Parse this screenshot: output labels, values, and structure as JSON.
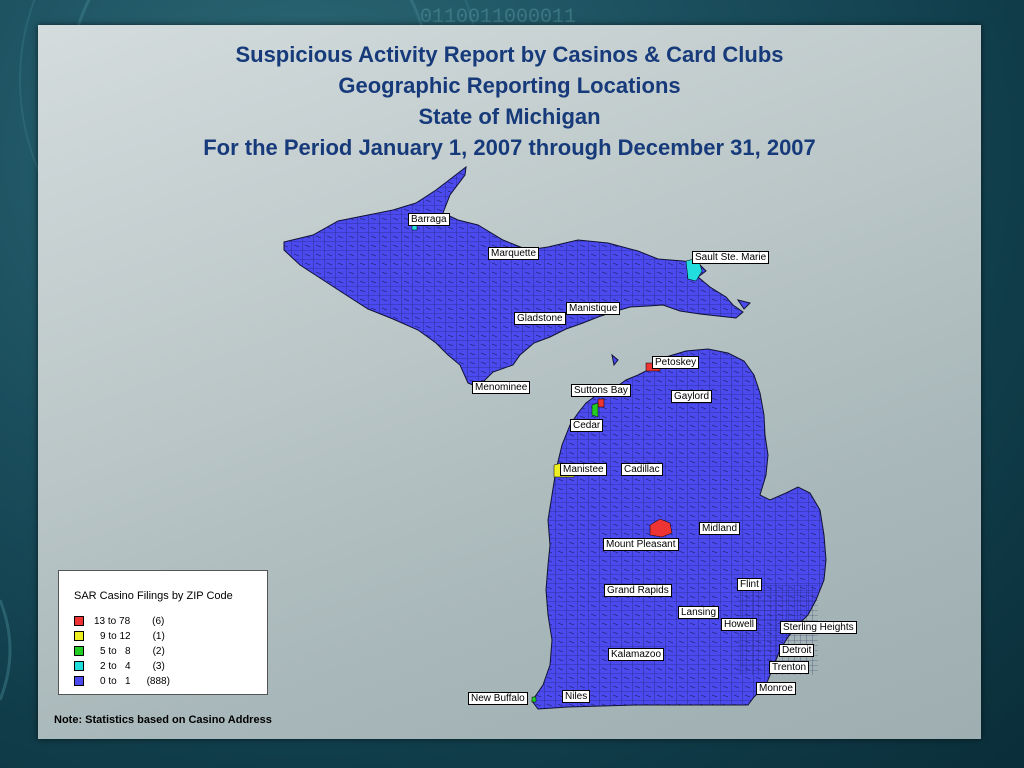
{
  "titles": {
    "line1": "Suspicious Activity Report by Casinos & Card Clubs",
    "line2": "Geographic Reporting Locations",
    "line3": "State of Michigan",
    "line4": "For the Period January 1, 2007 through December 31, 2007"
  },
  "colors": {
    "map_fill": "#4a4aee",
    "title": "#163a7a",
    "high": "#ee3333",
    "upper_mid": "#eeee22",
    "mid": "#22cc22",
    "low": "#22dddd",
    "base": "#4a4aee"
  },
  "cities": {
    "barraga": "Barraga",
    "marquette": "Marquette",
    "sault": "Sault Ste. Marie",
    "manistique": "Manistique",
    "gladstone": "Gladstone",
    "petoskey": "Petoskey",
    "menominee": "Menominee",
    "suttons_bay": "Suttons Bay",
    "gaylord": "Gaylord",
    "cedar": "Cedar",
    "manistee": "Manistee",
    "cadillac": "Cadillac",
    "midland": "Midland",
    "mount_pleasant": "Mount Pleasant",
    "flint": "Flint",
    "grand_rapids": "Grand Rapids",
    "lansing": "Lansing",
    "howell": "Howell",
    "sterling_heights": "Sterling Heights",
    "detroit": "Detroit",
    "kalamazoo": "Kalamazoo",
    "trenton": "Trenton",
    "monroe": "Monroe",
    "new_buffalo": "New Buffalo",
    "niles": "Niles"
  },
  "legend": {
    "title": "SAR Casino Filings by ZIP Code",
    "items": [
      {
        "range": "13 to 78",
        "count": "(6)",
        "color": "#ee3333"
      },
      {
        "range": "9 to 12",
        "count": "(1)",
        "color": "#eeee22"
      },
      {
        "range": "5 to   8",
        "count": "(2)",
        "color": "#22cc22"
      },
      {
        "range": "2 to   4",
        "count": "(3)",
        "color": "#22dddd"
      },
      {
        "range": "0 to   1",
        "count": "(888)",
        "color": "#4a4aee"
      }
    ]
  },
  "note": "Note: Statistics based on Casino Address"
}
